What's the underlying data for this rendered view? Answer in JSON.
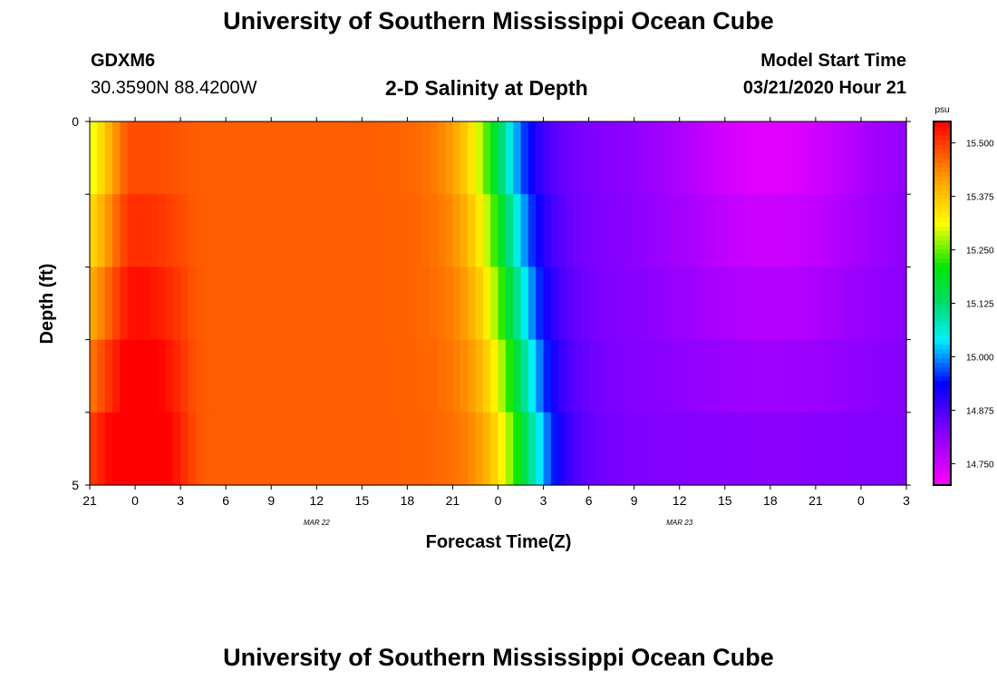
{
  "header": {
    "title": "University of Southern Mississippi Ocean Cube",
    "station_id": "GDXM6",
    "location": "30.3590N 88.4200W",
    "plot_title": "2-D Salinity at Depth",
    "start_label": "Model Start Time",
    "start_value": "03/21/2020 Hour 21"
  },
  "footer": {
    "title": "University of Southern Mississippi Ocean Cube"
  },
  "chart_data": {
    "type": "heatmap",
    "title": "2-D Salinity at Depth",
    "xlabel": "Forecast Time(Z)",
    "ylabel": "Depth (ft)",
    "x_hours": [
      0,
      1,
      2,
      3,
      4,
      5,
      6,
      7,
      8,
      9,
      10,
      11,
      12,
      13,
      14,
      15,
      16,
      17,
      18,
      19,
      20,
      21,
      22,
      23,
      24,
      25,
      26,
      27,
      28,
      29,
      30
    ],
    "x_tick_labels": [
      "21",
      "0",
      "3",
      "6",
      "9",
      "12",
      "15",
      "18",
      "21",
      "0",
      "3",
      "6",
      "9",
      "12",
      "15",
      "18",
      "21",
      "0",
      "3"
    ],
    "x_tick_hours": [
      0,
      3,
      6,
      9,
      12,
      15,
      18,
      21,
      24,
      27,
      30,
      33,
      36,
      39,
      42,
      45,
      48,
      51,
      54
    ],
    "date_labels": [
      {
        "text": "MAR 22",
        "hour": 15
      },
      {
        "text": "MAR 23",
        "hour": 39
      }
    ],
    "xlim": [
      0,
      54
    ],
    "y_tick_labels": [
      "0",
      "5"
    ],
    "ylim": [
      0,
      5
    ],
    "depth_layers": [
      0,
      1,
      2,
      3,
      4
    ],
    "colorbar": {
      "unit": "psu",
      "min": 14.7,
      "max": 15.55,
      "tick_labels": [
        "15.500",
        "15.375",
        "15.250",
        "15.125",
        "15.000",
        "14.875",
        "14.750"
      ],
      "tick_values": [
        15.5,
        15.375,
        15.25,
        15.125,
        15.0,
        14.875,
        14.75
      ]
    },
    "key_points": [
      {
        "hour": 0,
        "depth_layer": 0,
        "value": 15.28
      },
      {
        "hour": 0,
        "depth_layer": 4,
        "value": 15.52
      },
      {
        "hour": 15,
        "depth_layer": 2,
        "value": 15.44
      },
      {
        "hour": 24,
        "depth_layer": 2,
        "value": 15.42
      },
      {
        "hour": 27,
        "depth_layer": 2,
        "value": 15.13
      },
      {
        "hour": 33,
        "depth_layer": 2,
        "value": 14.83
      },
      {
        "hour": 45,
        "depth_layer": 0,
        "value": 14.71
      },
      {
        "hour": 54,
        "depth_layer": 2,
        "value": 14.82
      }
    ]
  }
}
